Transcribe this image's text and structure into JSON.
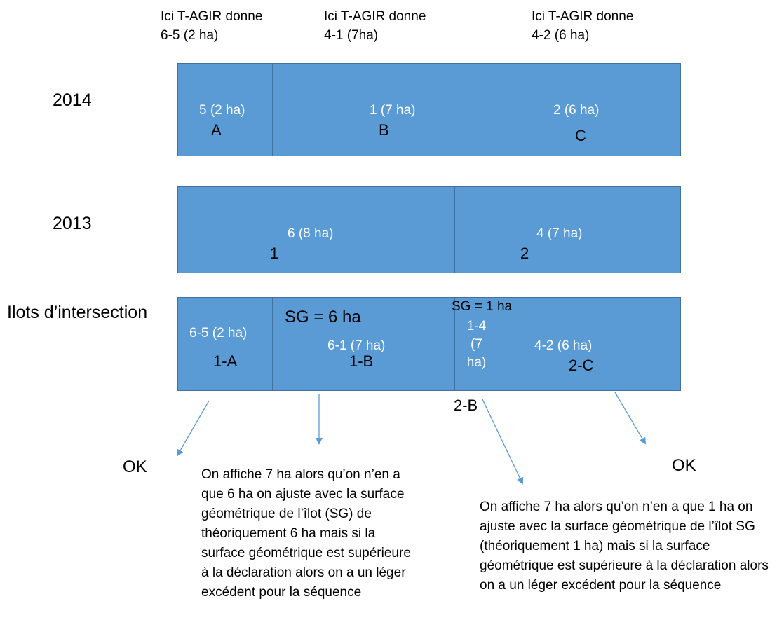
{
  "headers": [
    "Ici T-AGIR donne\n6-5 (2 ha)",
    "Ici T-AGIR donne\n4-1 (7ha)",
    "Ici T-AGIR donne\n4-2 (6 ha)"
  ],
  "rows": {
    "y2014": {
      "label": "2014",
      "cells": [
        {
          "text": "5 (2 ha)",
          "letter": "A"
        },
        {
          "text": "1 (7 ha)",
          "letter": "B"
        },
        {
          "text": "2 (6 ha)",
          "letter": "C"
        }
      ]
    },
    "y2013": {
      "label": "2013",
      "cells": [
        {
          "text": "6 (8 ha)",
          "letter": "1"
        },
        {
          "text": "4 (7 ha)",
          "letter": "2"
        }
      ]
    },
    "intersection": {
      "label": "Ilots d’intersection",
      "sg_main": "SG = 6 ha",
      "sg_small": "SG = 1 ha",
      "cells": [
        {
          "text": "6-5 (2 ha)",
          "code": "1-A"
        },
        {
          "text": "6-1 (7 ha)",
          "code": "1-B"
        },
        {
          "text_lines": [
            "1-4",
            "(7",
            "ha)"
          ],
          "code": "2-B"
        },
        {
          "text": "4-2 (6 ha)",
          "code": "2-C"
        }
      ]
    }
  },
  "results": {
    "ok_left": "OK",
    "ok_right": "OK",
    "note_left": "On affiche 7 ha alors qu’on n’en a que 6 ha on ajuste avec la surface géométrique de l’îlot (SG) de théoriquement 6 ha mais si la surface géométrique est supérieure à la déclaration alors on a un léger excédent pour la séquence",
    "note_right": "On affiche 7 ha alors qu’on n’en a que 1 ha on ajuste avec la surface géométrique de l’îlot SG (théoriquement 1 ha) mais si la surface géométrique est supérieure à la déclaration alors on a un léger excédent pour la séquence"
  },
  "colors": {
    "box_fill": "#5b9bd5",
    "box_border": "#41719c",
    "arrow": "#5b9bd5"
  }
}
